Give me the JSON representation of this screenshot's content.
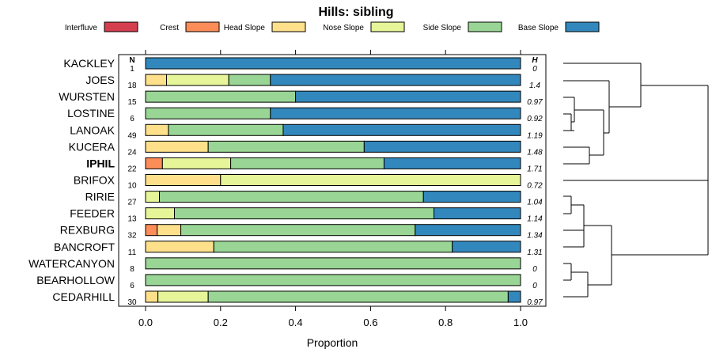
{
  "chart_data": {
    "type": "bar",
    "orientation": "horizontal",
    "stacked": true,
    "title": "Hills: sibling",
    "xlabel": "Proportion",
    "ylabel": "",
    "xlim": [
      0,
      1
    ],
    "x_ticks": [
      "0.0",
      "0.2",
      "0.4",
      "0.6",
      "0.8",
      "1.0"
    ],
    "n_header": "N",
    "h_header": "H",
    "highlight": "IPHIL",
    "legend": [
      {
        "name": "Interfluve",
        "color": "#d53e4f"
      },
      {
        "name": "Crest",
        "color": "#fc8d59"
      },
      {
        "name": "Head Slope",
        "color": "#fee08b"
      },
      {
        "name": "Nose Slope",
        "color": "#e6f598"
      },
      {
        "name": "Side Slope",
        "color": "#99d594"
      },
      {
        "name": "Base Slope",
        "color": "#3288bd"
      }
    ],
    "rows": [
      {
        "label": "KACKLEY",
        "n": "1",
        "h": "0",
        "values": [
          0,
          0,
          0,
          0,
          0,
          1.0
        ]
      },
      {
        "label": "JOES",
        "n": "18",
        "h": "1.4",
        "values": [
          0,
          0,
          0.056,
          0.166,
          0.111,
          0.667
        ]
      },
      {
        "label": "WURSTEN",
        "n": "15",
        "h": "0.97",
        "values": [
          0,
          0,
          0,
          0,
          0.4,
          0.6
        ]
      },
      {
        "label": "LOSTINE",
        "n": "6",
        "h": "0.92",
        "values": [
          0,
          0,
          0,
          0,
          0.333,
          0.667
        ]
      },
      {
        "label": "LANOAK",
        "n": "49",
        "h": "1.19",
        "values": [
          0,
          0,
          0.061,
          0,
          0.306,
          0.633
        ]
      },
      {
        "label": "KUCERA",
        "n": "24",
        "h": "1.48",
        "values": [
          0,
          0,
          0.167,
          0,
          0.416,
          0.417
        ]
      },
      {
        "label": "IPHIL",
        "n": "22",
        "h": "1.71",
        "values": [
          0,
          0.045,
          0,
          0.182,
          0.409,
          0.364
        ]
      },
      {
        "label": "BRIFOX",
        "n": "10",
        "h": "0.72",
        "values": [
          0,
          0,
          0.2,
          0.8,
          0,
          0
        ]
      },
      {
        "label": "RIRIE",
        "n": "27",
        "h": "1.04",
        "values": [
          0,
          0,
          0,
          0.037,
          0.704,
          0.259
        ]
      },
      {
        "label": "FEEDER",
        "n": "13",
        "h": "1.14",
        "values": [
          0,
          0,
          0,
          0.077,
          0.692,
          0.231
        ]
      },
      {
        "label": "REXBURG",
        "n": "32",
        "h": "1.34",
        "values": [
          0,
          0.031,
          0.063,
          0,
          0.625,
          0.281
        ]
      },
      {
        "label": "BANCROFT",
        "n": "11",
        "h": "1.31",
        "values": [
          0,
          0,
          0.182,
          0,
          0.636,
          0.182
        ]
      },
      {
        "label": "WATERCANYON",
        "n": "8",
        "h": "0",
        "values": [
          0,
          0,
          0,
          0,
          1.0,
          0
        ]
      },
      {
        "label": "BEARHOLLOW",
        "n": "6",
        "h": "0",
        "values": [
          0,
          0,
          0,
          0,
          1.0,
          0
        ]
      },
      {
        "label": "CEDARHILL",
        "n": "30",
        "h": "0.97",
        "values": [
          0,
          0,
          0.033,
          0.134,
          0.8,
          0.033
        ]
      }
    ]
  }
}
